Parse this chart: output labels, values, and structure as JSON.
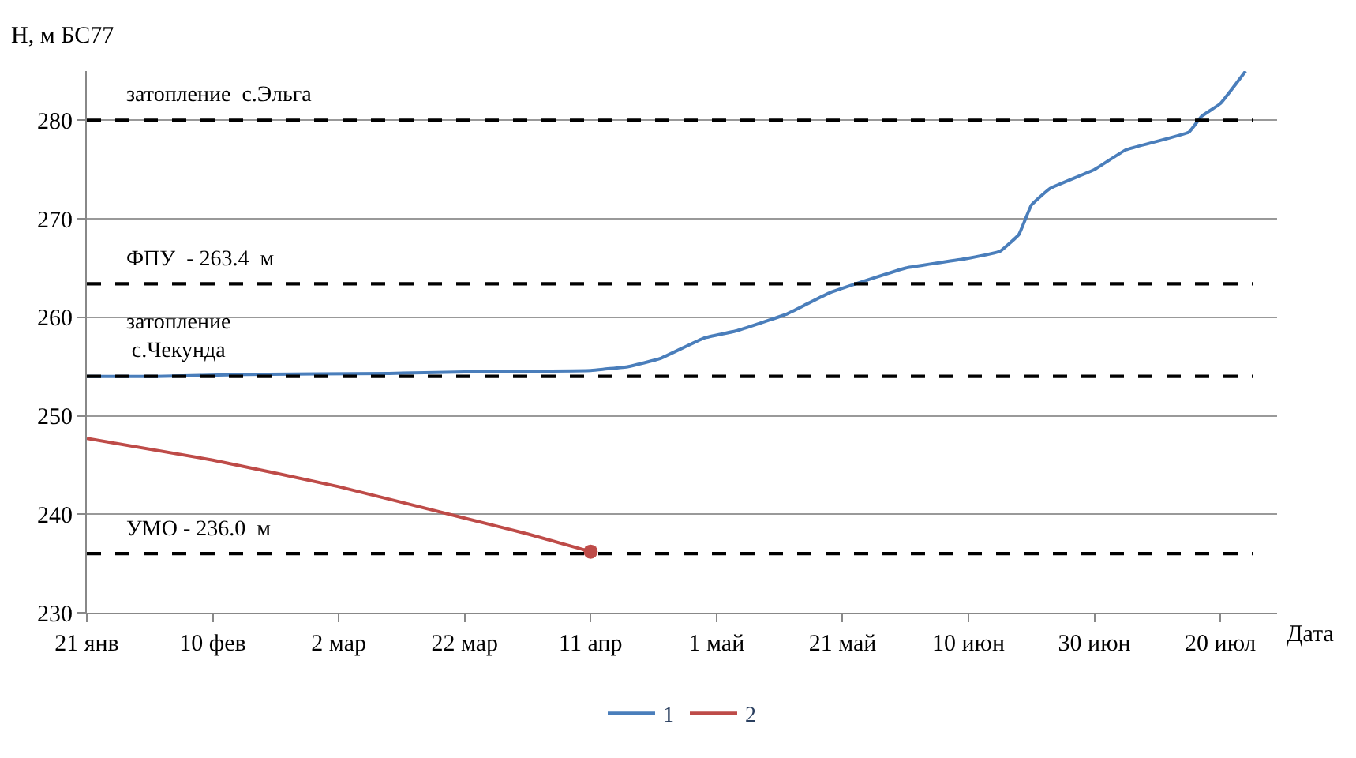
{
  "chart_data": {
    "type": "line",
    "ylabel": "Н, м БС77",
    "xlabel": "Дата",
    "xlim": [
      "--01-21",
      "--07-29"
    ],
    "xticks": [
      {
        "value": "--01-21",
        "label": "21 янв"
      },
      {
        "value": "--02-10",
        "label": "10 фев"
      },
      {
        "value": "--03-02",
        "label": "2 мар"
      },
      {
        "value": "--03-22",
        "label": "22 мар"
      },
      {
        "value": "--04-11",
        "label": "11 апр"
      },
      {
        "value": "--05-01",
        "label": "1 май"
      },
      {
        "value": "--05-21",
        "label": "21 май"
      },
      {
        "value": "--06-10",
        "label": "10 июн"
      },
      {
        "value": "--06-30",
        "label": "30 июн"
      },
      {
        "value": "--07-20",
        "label": "20 июл"
      }
    ],
    "ylim": [
      230,
      285
    ],
    "yticks": [
      230,
      240,
      250,
      260,
      270,
      280
    ],
    "grid": "y",
    "legend": "bottom",
    "line_style": "solid",
    "series": [
      {
        "name": "1",
        "color": "#4a7ebb",
        "x": [
          "--01-21",
          "--02-01",
          "--02-15",
          "--03-10",
          "--03-25",
          "--04-11",
          "--04-17",
          "--04-22",
          "--04-29",
          "--05-04",
          "--05-12",
          "--05-19",
          "--05-26",
          "--05-31",
          "--06-10",
          "--06-15",
          "--06-18",
          "--06-20",
          "--06-23",
          "--06-30",
          "--07-05",
          "--07-15",
          "--07-17",
          "--07-20",
          "--07-24"
        ],
        "values": [
          254.0,
          254.0,
          254.2,
          254.3,
          254.5,
          254.6,
          255.0,
          255.8,
          257.9,
          258.6,
          260.3,
          262.5,
          264.0,
          265.0,
          266.0,
          266.7,
          268.4,
          271.4,
          273.1,
          275.0,
          277.0,
          278.8,
          280.4,
          281.7,
          285.0
        ]
      },
      {
        "name": "2",
        "color": "#be4b48",
        "x": [
          "--01-21",
          "--02-10",
          "--03-02",
          "--03-22",
          "--04-01",
          "--04-11"
        ],
        "values": [
          247.7,
          245.5,
          242.8,
          239.6,
          238.0,
          236.2
        ]
      },
      {
        "type": "scatter",
        "color": "#be4b48",
        "marker": "circle",
        "x": [
          "--04-11"
        ],
        "values": [
          236.2
        ]
      }
    ],
    "ref_lines": [
      {
        "axis": "y",
        "value": 280,
        "label": "затопление  с.Эльга",
        "color": "#000000",
        "line_style": "dashed"
      },
      {
        "axis": "y",
        "value": 263.4,
        "label": "ФПУ  - 263.4  м",
        "color": "#000000",
        "line_style": "dashed"
      },
      {
        "axis": "y",
        "value": 254.0,
        "label": "затопление\nс.Чекунда",
        "color": "#000000",
        "line_style": "dashed"
      },
      {
        "axis": "y",
        "value": 236.0,
        "label": "УМО - 236.0  м",
        "color": "#000000",
        "line_style": "dashed"
      }
    ]
  }
}
